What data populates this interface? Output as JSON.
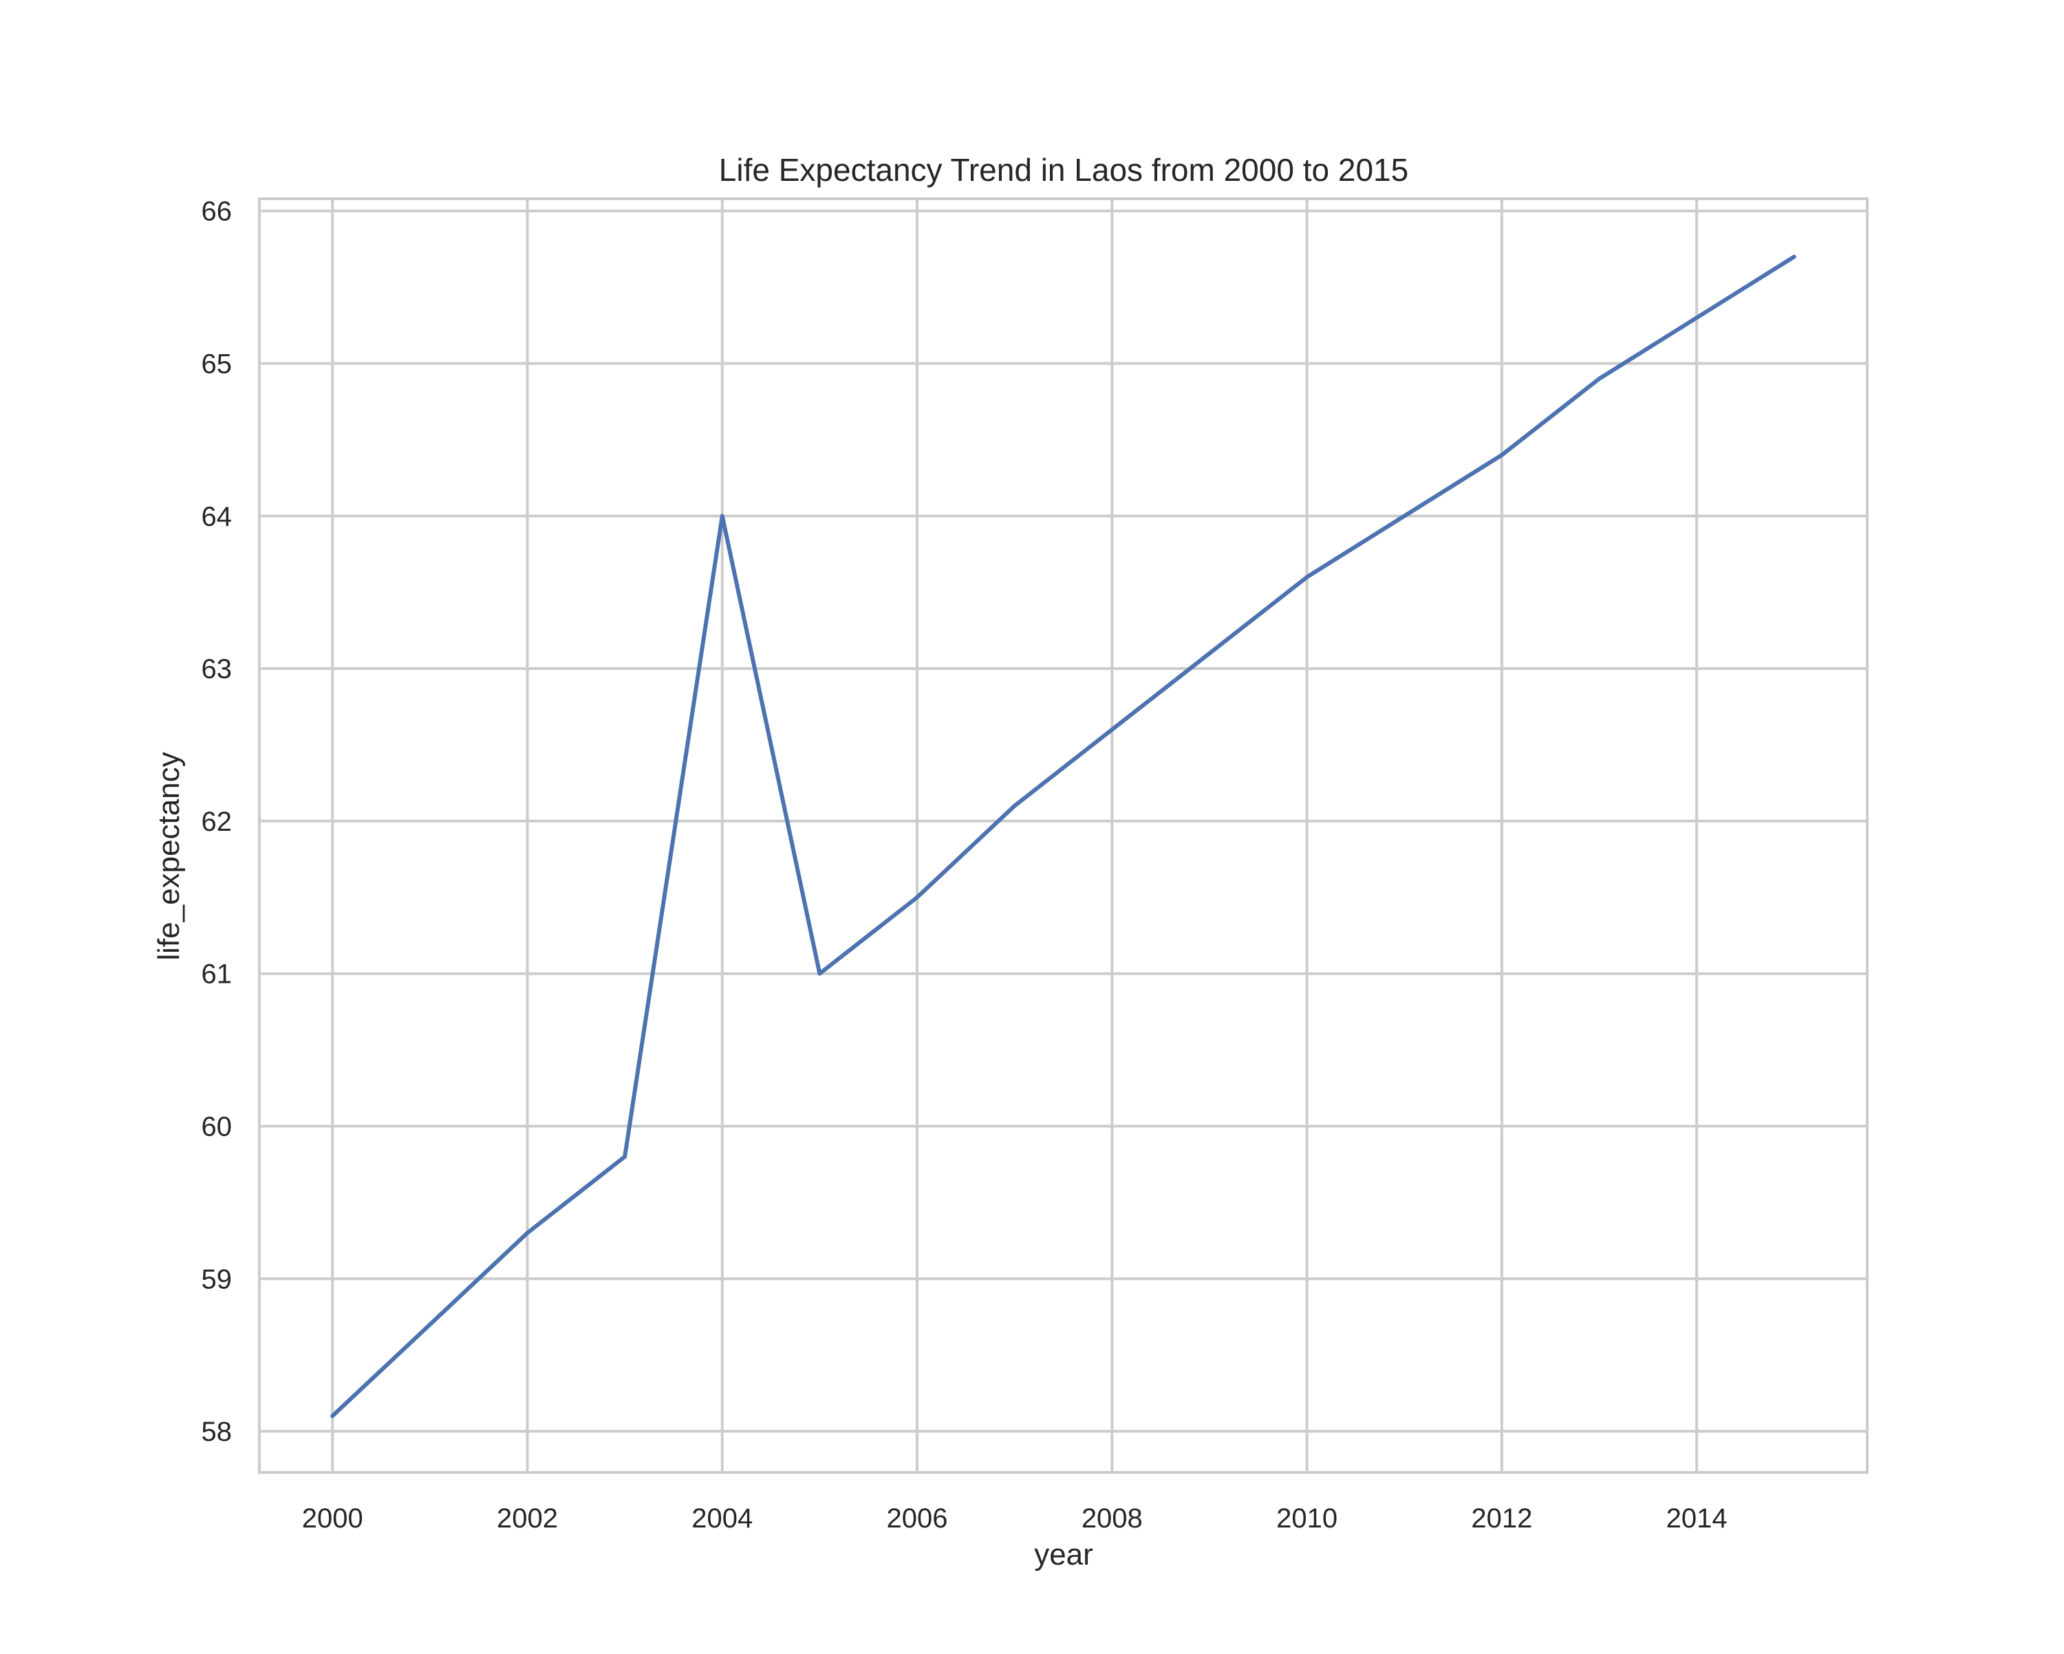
{
  "chart_data": {
    "type": "line",
    "title": "Life Expectancy Trend in Laos from 2000 to 2015",
    "xlabel": "year",
    "ylabel": "life_expectancy",
    "x": [
      2000,
      2001,
      2002,
      2003,
      2004,
      2005,
      2006,
      2007,
      2008,
      2009,
      2010,
      2011,
      2012,
      2013,
      2014,
      2015
    ],
    "series": [
      {
        "values": [
          58.1,
          58.7,
          59.3,
          59.8,
          64.0,
          61.0,
          61.5,
          62.1,
          62.6,
          63.1,
          63.6,
          64.0,
          64.4,
          64.9,
          65.3,
          65.7
        ]
      }
    ],
    "xlim": [
      1999.25,
      2015.75
    ],
    "ylim": [
      57.73,
      66.08
    ],
    "xticks": [
      2000,
      2002,
      2004,
      2006,
      2008,
      2010,
      2012,
      2014
    ],
    "yticks": [
      58,
      59,
      60,
      61,
      62,
      63,
      64,
      65,
      66
    ],
    "grid": true,
    "line_color": "#4c72b0",
    "grid_color": "#cccccc",
    "spine_color": "#cccccc"
  }
}
